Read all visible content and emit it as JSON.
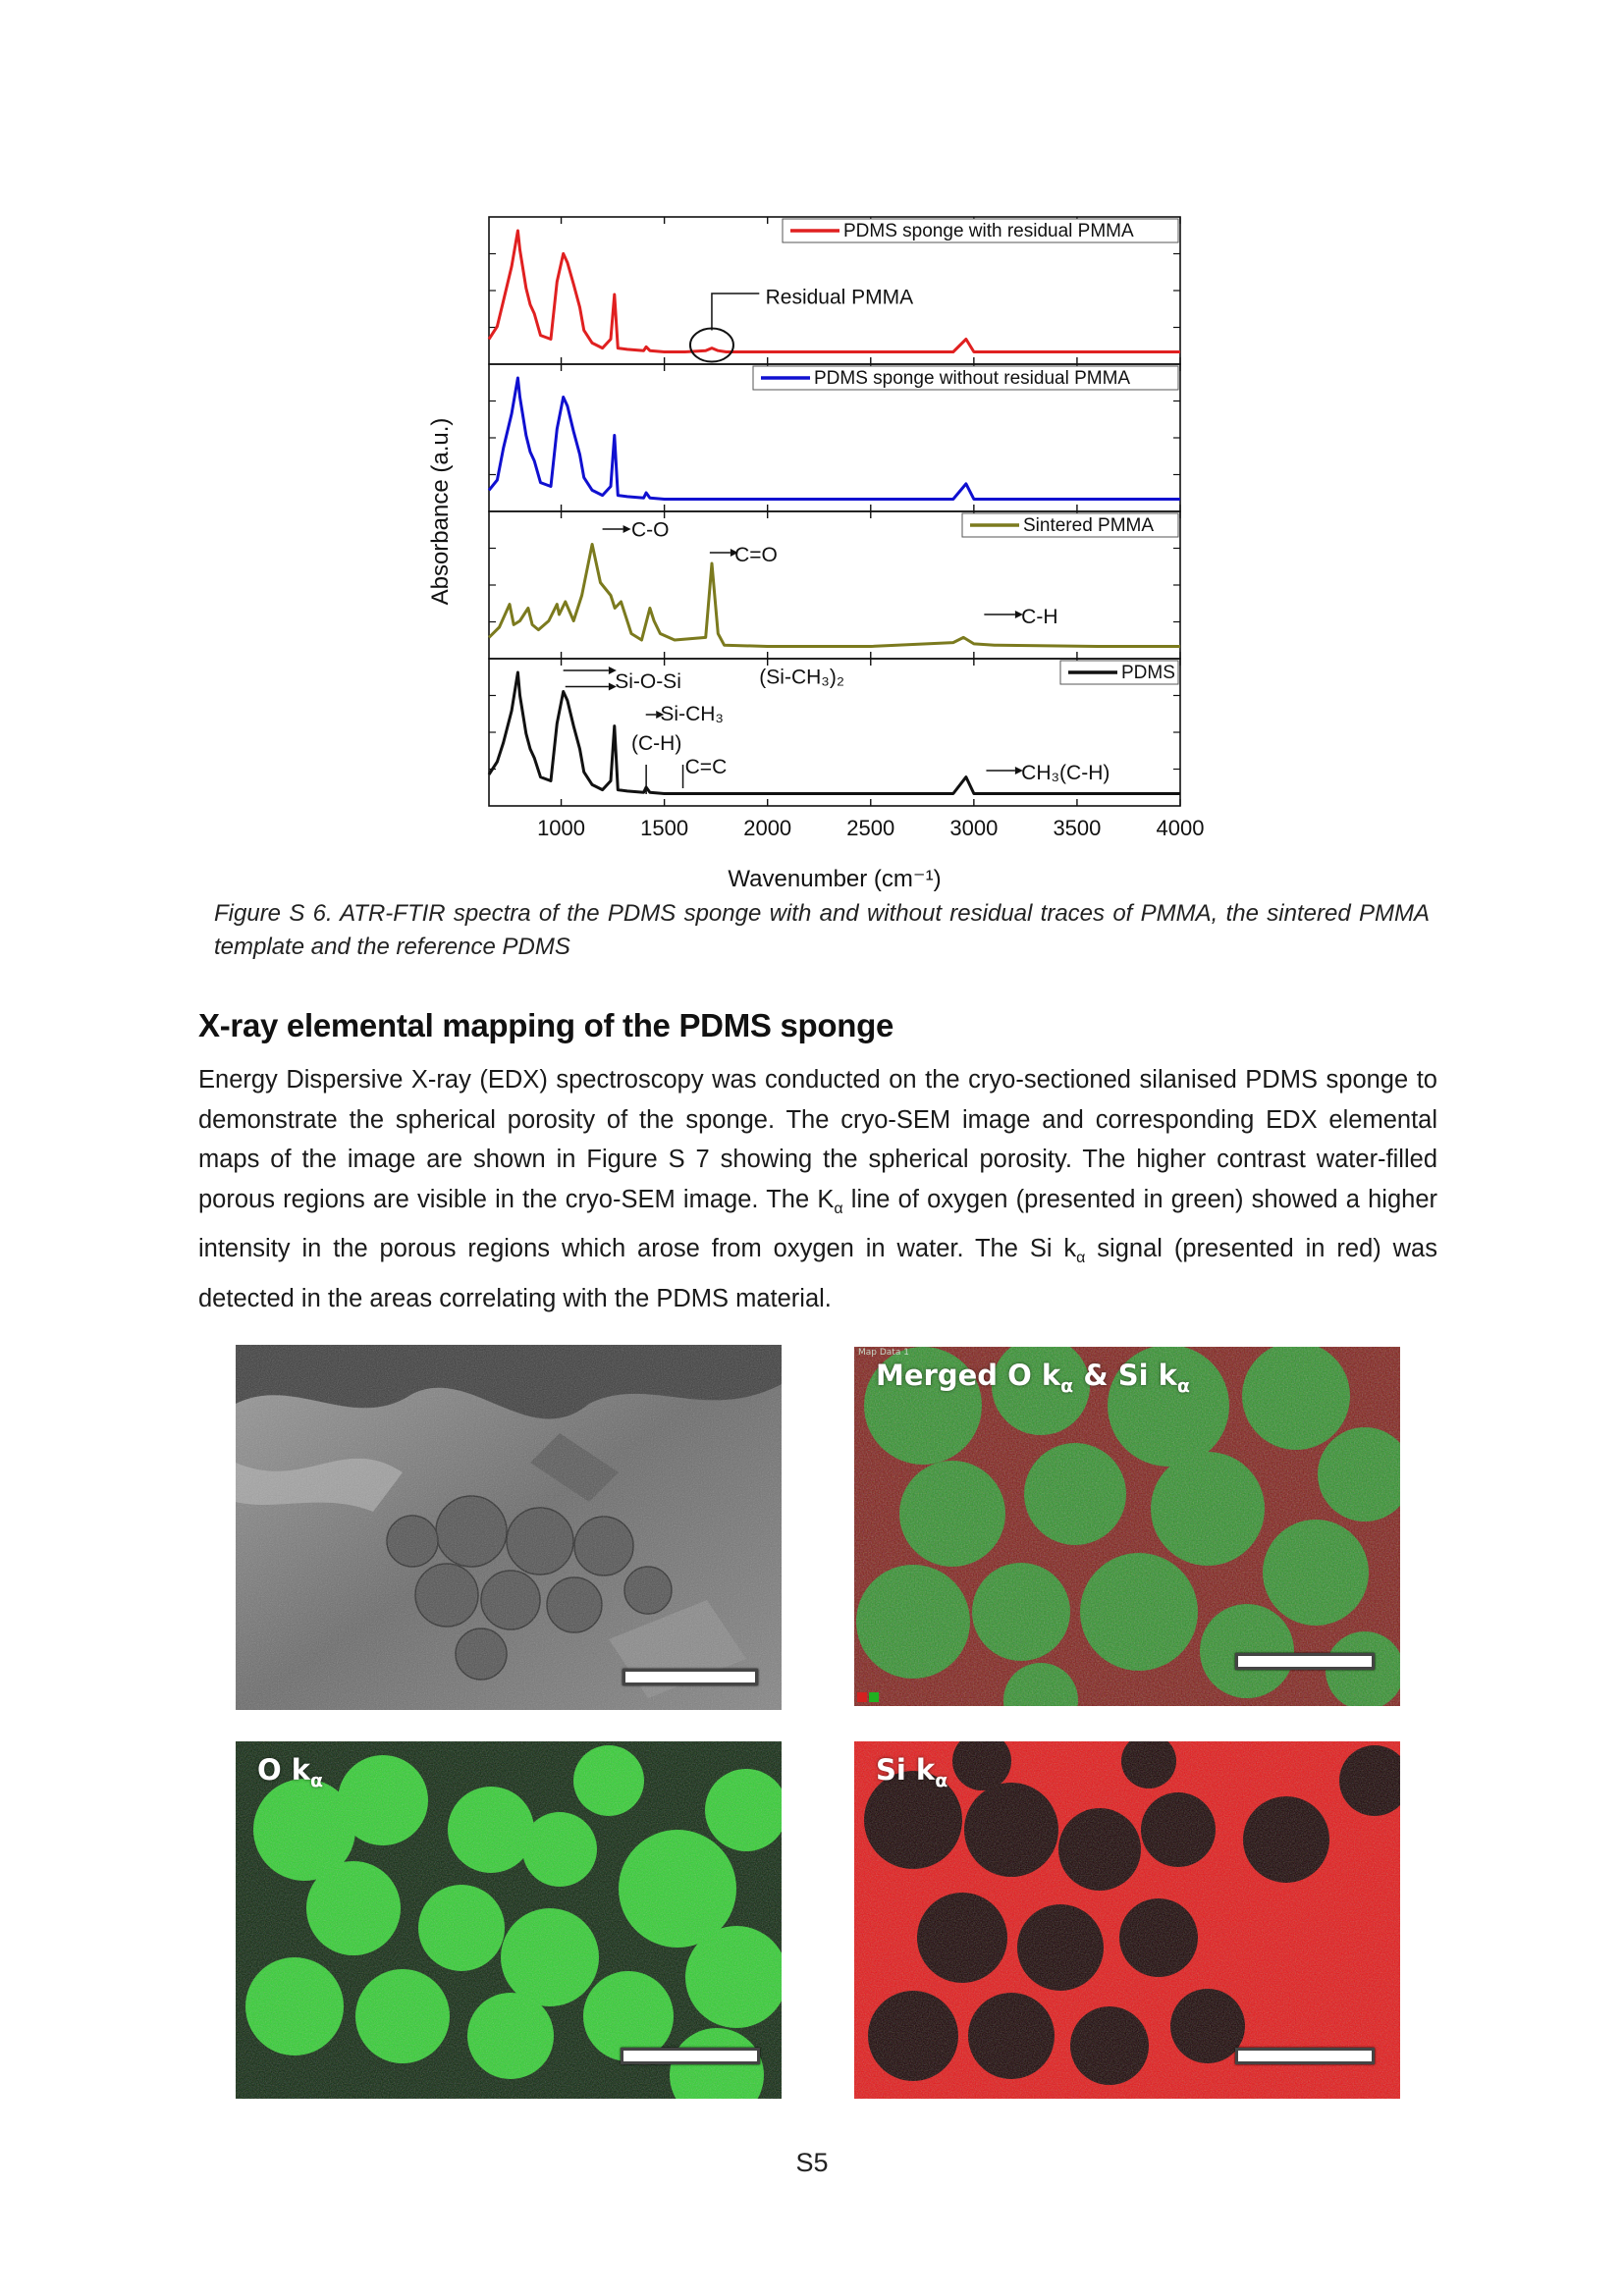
{
  "chart_data": {
    "type": "line",
    "xlabel": "Wavenumber (cm⁻¹)",
    "ylabel": "Absorbance (a.u.)",
    "xlim": [
      650,
      4000
    ],
    "x_ticks": [
      "1000",
      "1500",
      "2000",
      "2500",
      "3000",
      "3500",
      "4000"
    ],
    "x_tick_values": [
      1000,
      1500,
      2000,
      2500,
      3000,
      3500,
      4000
    ],
    "stacked": true,
    "grid": false,
    "legend_placement": "top-right of each panel",
    "series": [
      {
        "name": "PDMS sponge with residual PMMA",
        "color": "#e02020",
        "x": [
          650,
          690,
          720,
          760,
          790,
          800,
          830,
          850,
          870,
          900,
          950,
          980,
          1010,
          1030,
          1060,
          1090,
          1110,
          1150,
          1200,
          1240,
          1258,
          1275,
          1320,
          1400,
          1412,
          1430,
          1500,
          1600,
          1700,
          1730,
          1760,
          1800,
          2000,
          2500,
          2900,
          2962,
          3000,
          3200,
          3600,
          4000
        ],
        "y": [
          0.15,
          0.25,
          0.45,
          0.72,
          1.0,
          0.85,
          0.55,
          0.42,
          0.35,
          0.18,
          0.15,
          0.6,
          0.82,
          0.75,
          0.58,
          0.4,
          0.22,
          0.12,
          0.08,
          0.15,
          0.5,
          0.08,
          0.07,
          0.06,
          0.09,
          0.06,
          0.05,
          0.05,
          0.06,
          0.08,
          0.06,
          0.05,
          0.05,
          0.05,
          0.05,
          0.15,
          0.05,
          0.05,
          0.05,
          0.05
        ]
      },
      {
        "name": "PDMS sponge without residual PMMA",
        "color": "#1010d0",
        "x": [
          650,
          690,
          720,
          760,
          790,
          800,
          830,
          850,
          870,
          900,
          950,
          980,
          1010,
          1030,
          1060,
          1090,
          1110,
          1150,
          1200,
          1240,
          1258,
          1275,
          1320,
          1400,
          1412,
          1430,
          1500,
          2000,
          2500,
          2900,
          2962,
          3000,
          3200,
          3600,
          4000
        ],
        "y": [
          0.12,
          0.2,
          0.45,
          0.72,
          1.0,
          0.85,
          0.55,
          0.42,
          0.35,
          0.18,
          0.15,
          0.6,
          0.85,
          0.78,
          0.58,
          0.4,
          0.22,
          0.12,
          0.08,
          0.15,
          0.55,
          0.08,
          0.07,
          0.06,
          0.1,
          0.06,
          0.05,
          0.05,
          0.05,
          0.05,
          0.17,
          0.05,
          0.05,
          0.05,
          0.05
        ]
      },
      {
        "name": "Sintered PMMA",
        "color": "#7b7a1e",
        "x": [
          650,
          700,
          750,
          770,
          800,
          840,
          860,
          890,
          940,
          980,
          990,
          1020,
          1060,
          1100,
          1150,
          1170,
          1190,
          1240,
          1260,
          1290,
          1340,
          1390,
          1430,
          1450,
          1480,
          1550,
          1700,
          1730,
          1760,
          1790,
          2000,
          2500,
          2900,
          2950,
          3000,
          3100,
          3600,
          4000
        ],
        "y": [
          0.12,
          0.2,
          0.38,
          0.22,
          0.25,
          0.35,
          0.22,
          0.18,
          0.25,
          0.38,
          0.3,
          0.4,
          0.25,
          0.45,
          0.85,
          0.7,
          0.55,
          0.45,
          0.35,
          0.4,
          0.15,
          0.1,
          0.35,
          0.25,
          0.15,
          0.1,
          0.12,
          0.7,
          0.15,
          0.06,
          0.05,
          0.05,
          0.08,
          0.12,
          0.07,
          0.06,
          0.05,
          0.05
        ]
      },
      {
        "name": "PDMS",
        "color": "#111111",
        "x": [
          650,
          690,
          720,
          760,
          790,
          800,
          830,
          850,
          870,
          900,
          950,
          980,
          1010,
          1030,
          1060,
          1090,
          1110,
          1150,
          1200,
          1240,
          1258,
          1275,
          1320,
          1400,
          1412,
          1430,
          1500,
          2000,
          2500,
          2900,
          2962,
          3000,
          3200,
          3600,
          4000
        ],
        "y": [
          0.2,
          0.3,
          0.45,
          0.7,
          1.0,
          0.82,
          0.52,
          0.4,
          0.33,
          0.18,
          0.15,
          0.6,
          0.85,
          0.78,
          0.58,
          0.4,
          0.22,
          0.12,
          0.08,
          0.15,
          0.58,
          0.08,
          0.07,
          0.06,
          0.1,
          0.06,
          0.05,
          0.05,
          0.05,
          0.05,
          0.18,
          0.05,
          0.05,
          0.05,
          0.05
        ]
      }
    ],
    "annotations": {
      "residual_pmma": "Residual PMMA",
      "c_o": "C-O",
      "c_eq_o": "C=O",
      "c_h": "C-H",
      "si_o_si": "Si-O-Si",
      "si_ch3_2": "(Si-CH₃)₂",
      "si_ch3": "Si-CH₃",
      "c_h_paren": "(C-H)",
      "c_eq_c": "C=C",
      "ch3_c_h": "CH₃(C-H)"
    }
  },
  "figure": {
    "caption": "Figure S 6. ATR-FTIR spectra of the PDMS sponge with and without residual traces of PMMA, the sintered PMMA template and the reference PDMS"
  },
  "section": {
    "heading": "X-ray elemental mapping of the PDMS sponge",
    "p1": "Energy Dispersive X-ray (EDX) spectroscopy was conducted on the cryo-sectioned silanised PDMS sponge to demonstrate the spherical porosity of the sponge. The cryo-SEM image and corresponding EDX elemental maps of the image are shown in Figure S 7 showing the spherical porosity. The higher contrast water-filled porous regions are visible in the cryo-SEM image. The K",
    "p1_sub1": "α",
    "p2": " line of oxygen (presented in green) showed a higher intensity in the porous regions which arose from oxygen in water. The Si k",
    "p2_sub2": "α",
    "p3": " signal (presented in red) was detected in the areas correlating with the PDMS material."
  },
  "images": {
    "merged_label_a": "Merged O k",
    "merged_sub_a": "α",
    "merged_label_b": " & Si k",
    "merged_sub_b": "α",
    "map_tag": "Map Data 1",
    "o_label": "O k",
    "o_sub": "α",
    "si_label": "Si k",
    "si_sub": "α",
    "colors": {
      "oxygen": "#33cc33",
      "silicon": "#ee1111",
      "sem": "#7a7a7a"
    }
  },
  "page": {
    "number": "S5"
  }
}
